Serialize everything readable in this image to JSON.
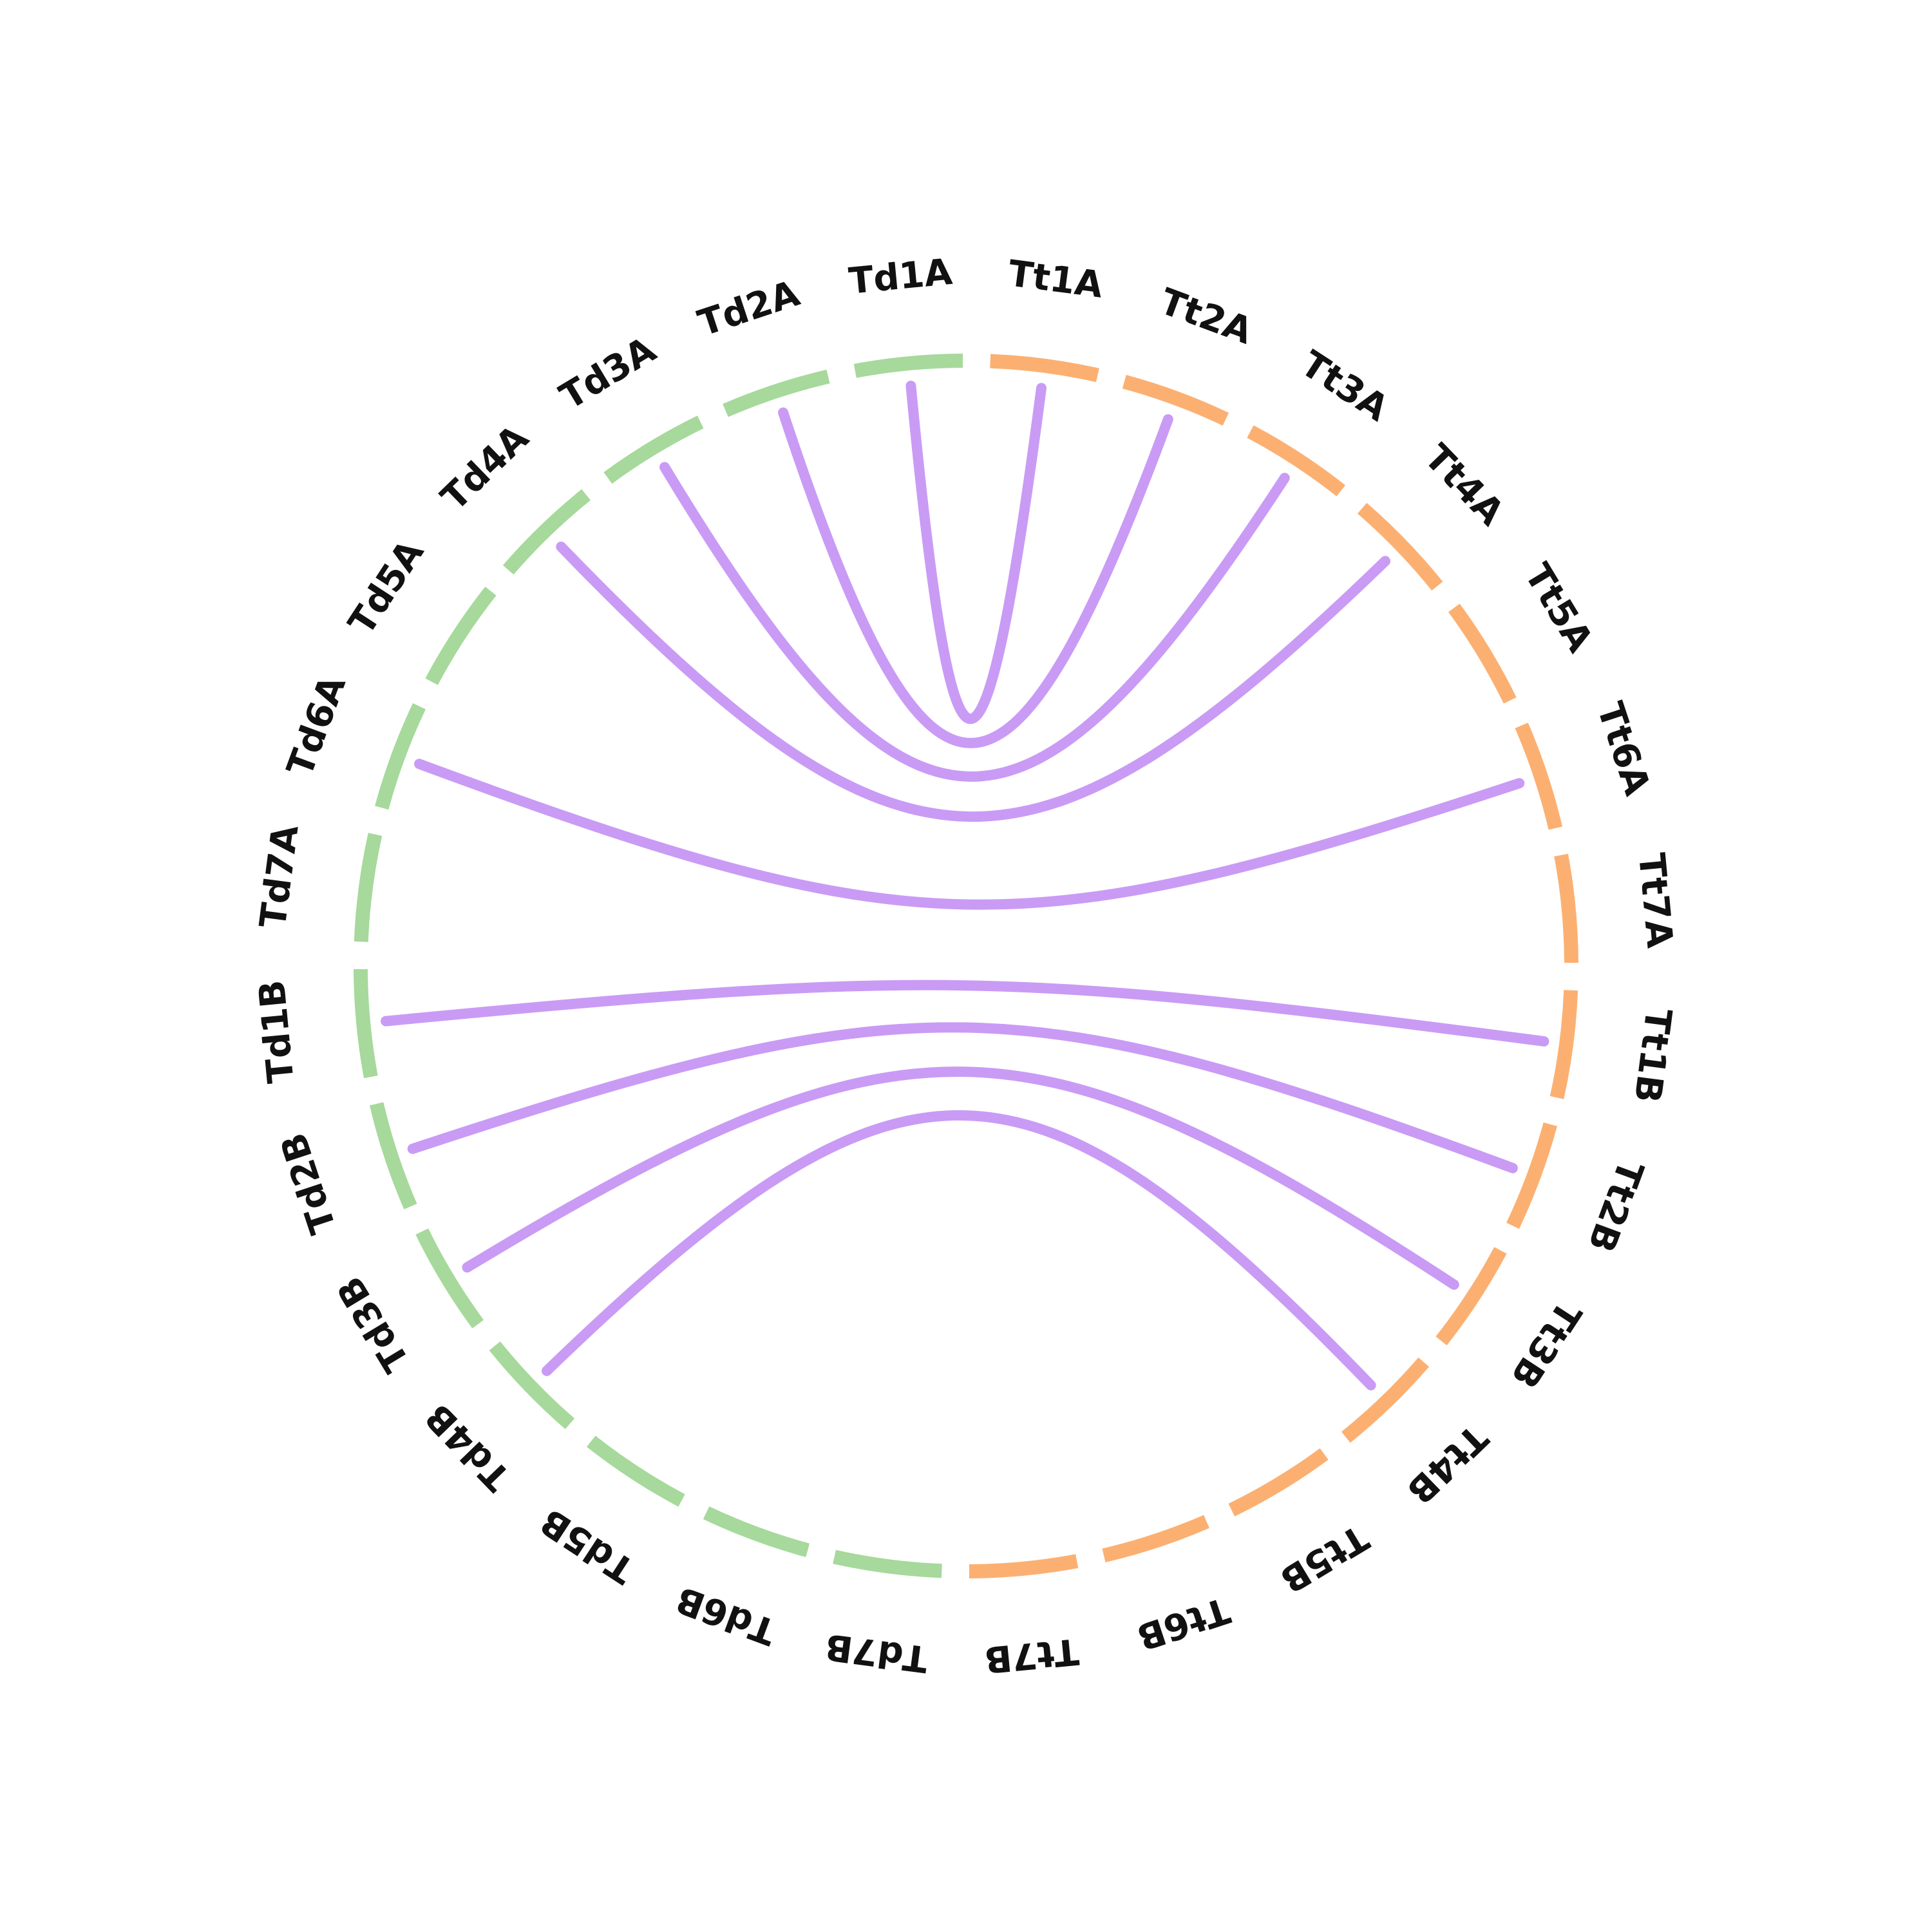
{
  "chart_data": {
    "type": "chord",
    "colors": {
      "Td": "#a6d99b",
      "Tt": "#fbb072",
      "link": "#c99bf5"
    },
    "segments": [
      {
        "name": "Tt1A",
        "group": "Tt"
      },
      {
        "name": "Tt2A",
        "group": "Tt"
      },
      {
        "name": "Tt3A",
        "group": "Tt"
      },
      {
        "name": "Tt4A",
        "group": "Tt"
      },
      {
        "name": "Tt5A",
        "group": "Tt"
      },
      {
        "name": "Tt6A",
        "group": "Tt"
      },
      {
        "name": "Tt7A",
        "group": "Tt"
      },
      {
        "name": "Tt1B",
        "group": "Tt"
      },
      {
        "name": "Tt2B",
        "group": "Tt"
      },
      {
        "name": "Tt3B",
        "group": "Tt"
      },
      {
        "name": "Tt4B",
        "group": "Tt"
      },
      {
        "name": "Tt5B",
        "group": "Tt"
      },
      {
        "name": "Tt6B",
        "group": "Tt"
      },
      {
        "name": "Tt7B",
        "group": "Tt"
      },
      {
        "name": "Td7B",
        "group": "Td"
      },
      {
        "name": "Td6B",
        "group": "Td"
      },
      {
        "name": "Td5B",
        "group": "Td"
      },
      {
        "name": "Td4B",
        "group": "Td"
      },
      {
        "name": "Td3B",
        "group": "Td"
      },
      {
        "name": "Td2B",
        "group": "Td"
      },
      {
        "name": "Td1B",
        "group": "Td"
      },
      {
        "name": "Td7A",
        "group": "Td"
      },
      {
        "name": "Td6A",
        "group": "Td"
      },
      {
        "name": "Td5A",
        "group": "Td"
      },
      {
        "name": "Td4A",
        "group": "Td"
      },
      {
        "name": "Td3A",
        "group": "Td"
      },
      {
        "name": "Td2A",
        "group": "Td"
      },
      {
        "name": "Td1A",
        "group": "Td"
      }
    ],
    "links": [
      {
        "source": "Td1A",
        "target": "Tt1A"
      },
      {
        "source": "Td2A",
        "target": "Tt2A"
      },
      {
        "source": "Td3A",
        "target": "Tt3A"
      },
      {
        "source": "Td4A",
        "target": "Tt4A"
      },
      {
        "source": "Td6A",
        "target": "Tt6A"
      },
      {
        "source": "Td1B",
        "target": "Tt1B"
      },
      {
        "source": "Td2B",
        "target": "Tt2B"
      },
      {
        "source": "Td3B",
        "target": "Tt3B"
      },
      {
        "source": "Td4B",
        "target": "Tt4B"
      }
    ]
  }
}
